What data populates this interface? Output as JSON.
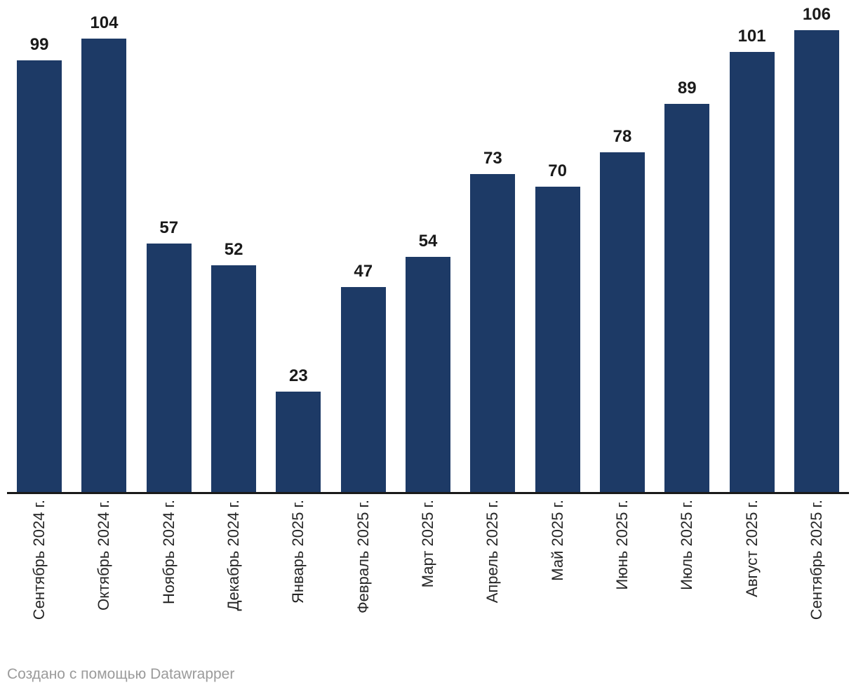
{
  "chart_data": {
    "type": "bar",
    "categories": [
      "Сентябрь 2024 г.",
      "Октябрь 2024 г.",
      "Ноябрь 2024 г.",
      "Декабрь 2024 г.",
      "Январь 2025 г.",
      "Февраль 2025 г.",
      "Март 2025 г.",
      "Апрель 2025 г.",
      "Май 2025 г.",
      "Июнь 2025 г.",
      "Июль 2025 г.",
      "Август 2025 г.",
      "Сентябрь 2025 г."
    ],
    "values": [
      99,
      104,
      57,
      52,
      23,
      47,
      54,
      73,
      70,
      78,
      89,
      101,
      106
    ],
    "title": "",
    "xlabel": "",
    "ylabel": "",
    "ylim": [
      0,
      113
    ],
    "grid": false,
    "legend_position": "none",
    "value_labels_shown": true,
    "x_tick_rotation_deg": -90,
    "bar_color": "#1d3a66",
    "value_label_color": "#1a1a1a",
    "tick_label_color": "#262626",
    "axis_line_color": "#1a1a1a"
  },
  "footer": {
    "attribution_full": "Создано с помощью Datawrapper",
    "color": "#9b9b9b"
  }
}
